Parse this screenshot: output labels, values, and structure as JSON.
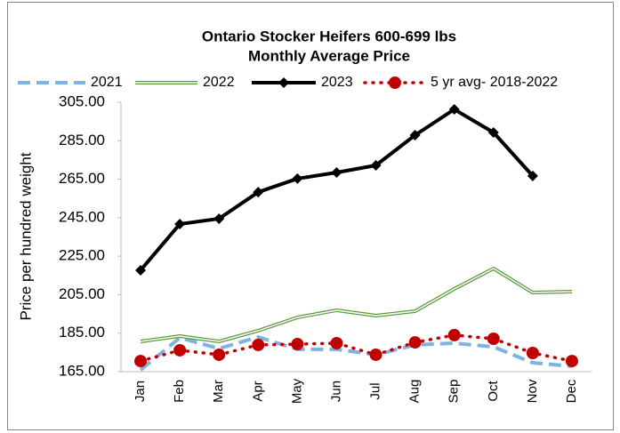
{
  "chart_data": {
    "type": "line",
    "title": "Ontario Stocker Heifers 600-699 lbs",
    "subtitle": "Monthly Average Price",
    "ylabel": "Price per hundred weight",
    "categories": [
      "Jan",
      "Feb",
      "Mar",
      "Apr",
      "May",
      "Jun",
      "Jul",
      "Aug",
      "Sep",
      "Oct",
      "Nov",
      "Dec"
    ],
    "series": [
      {
        "name": "2021",
        "color": "#7fb2e0",
        "line_style": "dashed",
        "marker": "none",
        "values": [
          165.9,
          182.6,
          177.0,
          183.0,
          176.6,
          176.6,
          173.8,
          178.9,
          179.8,
          177.9,
          169.6,
          167.8
        ]
      },
      {
        "name": "2022",
        "color": "#5b9a3c",
        "line_style": "double",
        "marker": "none",
        "values": [
          180.7,
          183.5,
          180.7,
          186.3,
          193.2,
          196.9,
          194.1,
          196.4,
          208.0,
          218.6,
          206.1,
          206.6
        ]
      },
      {
        "name": "2023",
        "color": "#000000",
        "line_style": "solid",
        "marker": "diamond",
        "values": [
          217.7,
          241.7,
          244.5,
          258.3,
          265.3,
          268.5,
          272.2,
          287.9,
          301.3,
          289.3,
          266.7,
          null
        ]
      },
      {
        "name": "5 yr avg- 2018-2022",
        "color": "#c00000",
        "line_style": "dotted",
        "marker": "circle",
        "values": [
          170.5,
          176.1,
          173.8,
          178.9,
          179.3,
          179.8,
          173.8,
          180.2,
          184.0,
          182.1,
          174.7,
          170.5
        ]
      }
    ],
    "ylim": [
      165,
      305
    ],
    "yticks": [
      {
        "value": 165,
        "label": "165.00"
      },
      {
        "value": 185,
        "label": "185.00"
      },
      {
        "value": 205,
        "label": "205.00"
      },
      {
        "value": 225,
        "label": "225.00"
      },
      {
        "value": 245,
        "label": "245.00"
      },
      {
        "value": 265,
        "label": "265.00"
      },
      {
        "value": 285,
        "label": "285.00"
      },
      {
        "value": 305,
        "label": "305.00"
      }
    ],
    "grid": false,
    "legend": "top"
  }
}
